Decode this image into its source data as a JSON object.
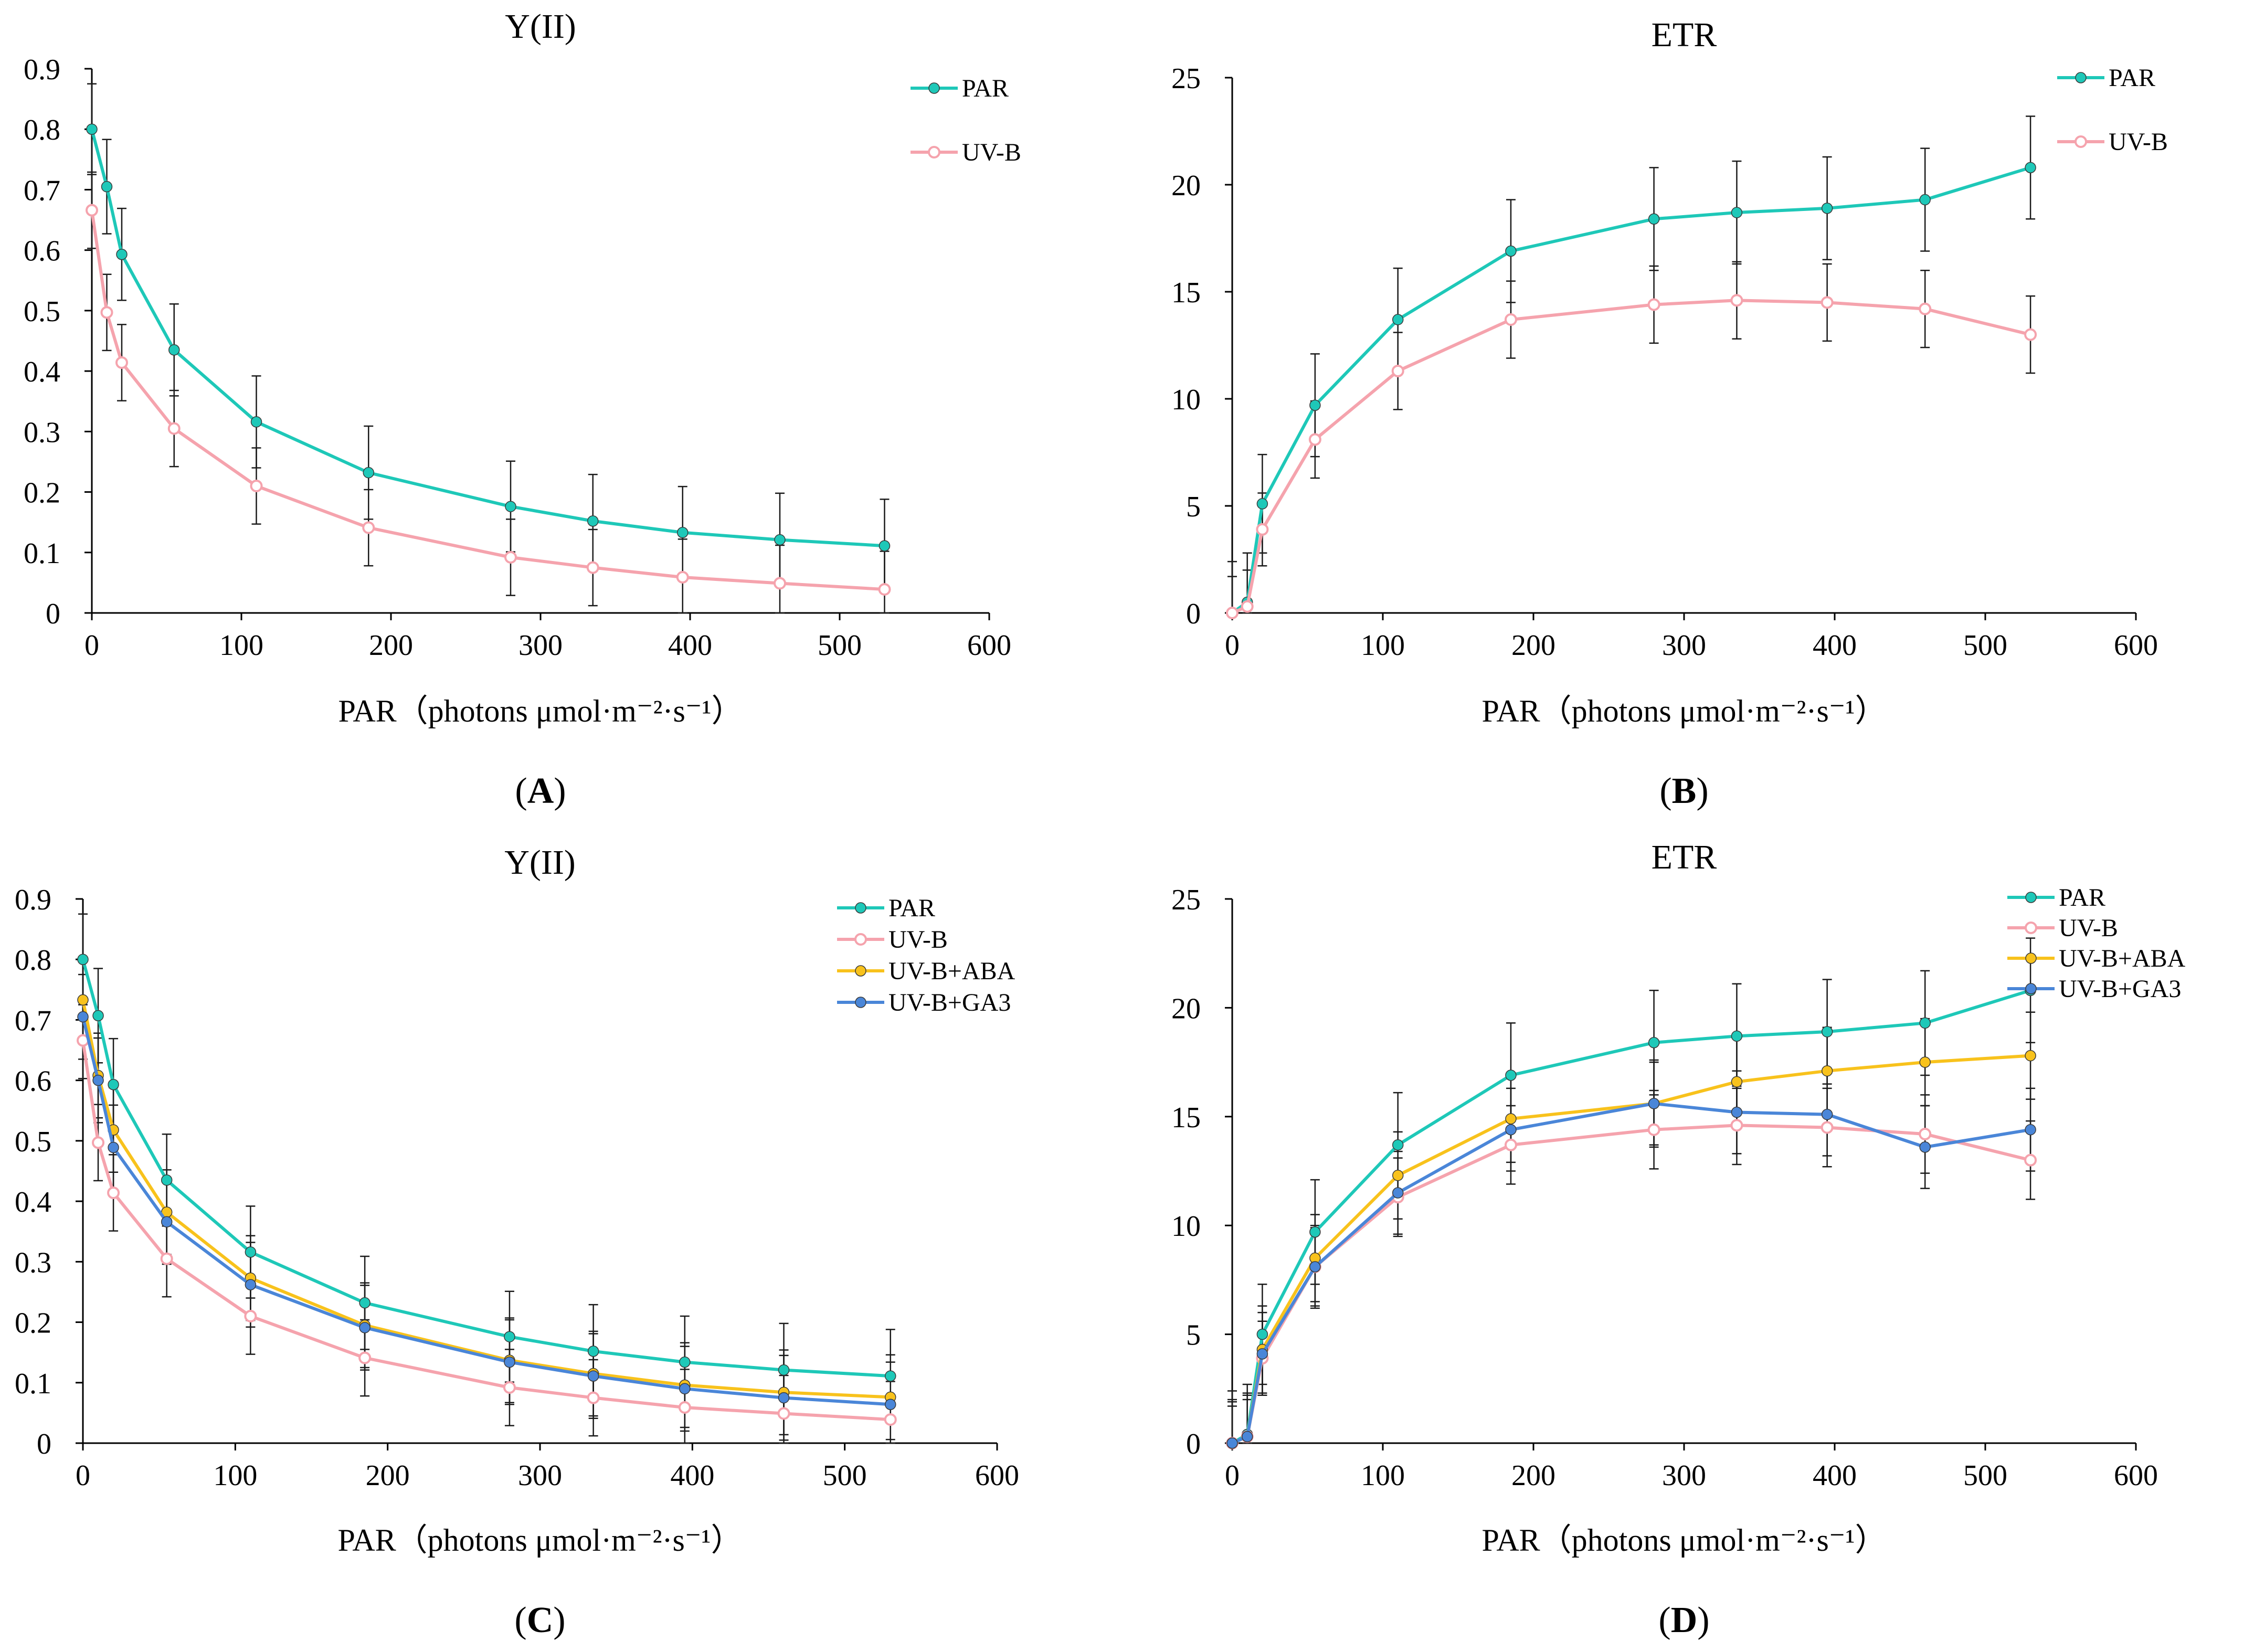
{
  "series_styles": {
    "PAR": {
      "color": "#1ec8b8"
    },
    "UV-B": {
      "color": "#f5a3ad"
    },
    "UV-B+ABA": {
      "color": "#f8c21c"
    },
    "UV-B+GA3": {
      "color": "#4a86d8"
    }
  },
  "chart_data": [
    {
      "type": "line",
      "id": "A",
      "panel_letter": "A",
      "title": "Y(II)",
      "xlabel": "PAR（photons μmol·m⁻²·s⁻¹）",
      "ylabel": "",
      "x": [
        0,
        10,
        20,
        55,
        110,
        185,
        280,
        335,
        395,
        460,
        530
      ],
      "xlim": [
        0,
        600
      ],
      "ylim": [
        0,
        0.9
      ],
      "xticks": [
        0,
        100,
        200,
        300,
        400,
        500,
        600
      ],
      "yticks": [
        0,
        0.1,
        0.2,
        0.3,
        0.4,
        0.5,
        0.6,
        0.7,
        0.8,
        0.9
      ],
      "ytick_labels": [
        "0",
        "0.1",
        "0.2",
        "0.3",
        "0.4",
        "0.5",
        "0.6",
        "0.7",
        "0.8",
        "0.9"
      ],
      "legend": [
        "PAR",
        "UV-B"
      ],
      "series": [
        {
          "name": "PAR",
          "values": [
            0.8,
            0.705,
            0.593,
            0.435,
            0.316,
            0.232,
            0.176,
            0.152,
            0.133,
            0.121,
            0.111
          ],
          "errors": [
            0.075,
            0.078,
            0.076,
            0.076,
            0.076,
            0.077,
            0.075,
            0.077,
            0.076,
            0.077,
            0.077
          ]
        },
        {
          "name": "UV-B",
          "values": [
            0.666,
            0.497,
            0.414,
            0.305,
            0.21,
            0.141,
            0.092,
            0.075,
            0.059,
            0.049,
            0.039
          ],
          "errors": [
            0.063,
            0.063,
            0.063,
            0.063,
            0.063,
            0.063,
            0.063,
            0.063,
            0.063,
            0.063,
            0.063
          ]
        }
      ]
    },
    {
      "type": "line",
      "id": "B",
      "panel_letter": "B",
      "title": "ETR",
      "xlabel": "PAR（photons μmol·m⁻²·s⁻¹）",
      "ylabel": "",
      "x": [
        0,
        10,
        20,
        55,
        110,
        185,
        280,
        335,
        395,
        460,
        530
      ],
      "xlim": [
        0,
        600
      ],
      "ylim": [
        0,
        25
      ],
      "xticks": [
        0,
        100,
        200,
        300,
        400,
        500,
        600
      ],
      "yticks": [
        0,
        5,
        10,
        15,
        20,
        25
      ],
      "ytick_labels": [
        "0",
        "5",
        "10",
        "15",
        "20",
        "25"
      ],
      "legend": [
        "PAR",
        "UV-B"
      ],
      "series": [
        {
          "name": "PAR",
          "values": [
            0,
            0.5,
            5.1,
            9.7,
            13.7,
            16.9,
            18.4,
            18.7,
            18.9,
            19.3,
            20.8
          ],
          "errors": [
            2.4,
            2.3,
            2.3,
            2.4,
            2.4,
            2.4,
            2.4,
            2.4,
            2.4,
            2.4,
            2.4
          ]
        },
        {
          "name": "UV-B",
          "values": [
            0,
            0.3,
            3.9,
            8.1,
            11.3,
            13.7,
            14.4,
            14.6,
            14.5,
            14.2,
            13.0
          ],
          "errors": [
            1.7,
            1.7,
            1.7,
            1.8,
            1.8,
            1.8,
            1.8,
            1.8,
            1.8,
            1.8,
            1.8
          ]
        }
      ]
    },
    {
      "type": "line",
      "id": "C",
      "panel_letter": "C",
      "title": "Y(II)",
      "xlabel": "PAR（photons μmol·m⁻²·s⁻¹）",
      "ylabel": "",
      "x": [
        0,
        10,
        20,
        55,
        110,
        185,
        280,
        335,
        395,
        460,
        530
      ],
      "xlim": [
        0,
        600
      ],
      "ylim": [
        0,
        0.9
      ],
      "xticks": [
        0,
        100,
        200,
        300,
        400,
        500,
        600
      ],
      "yticks": [
        0,
        0.1,
        0.2,
        0.3,
        0.4,
        0.5,
        0.6,
        0.7,
        0.8,
        0.9
      ],
      "ytick_labels": [
        "0",
        "0.1",
        "0.2",
        "0.3",
        "0.4",
        "0.5",
        "0.6",
        "0.7",
        "0.8",
        "0.9"
      ],
      "legend": [
        "PAR",
        "UV-B",
        "UV-B+ABA",
        "UV-B+GA3"
      ],
      "series": [
        {
          "name": "PAR",
          "values": [
            0.8,
            0.707,
            0.593,
            0.435,
            0.316,
            0.232,
            0.176,
            0.152,
            0.134,
            0.121,
            0.111
          ],
          "errors": [
            0.075,
            0.078,
            0.076,
            0.076,
            0.076,
            0.077,
            0.075,
            0.077,
            0.076,
            0.077,
            0.077
          ]
        },
        {
          "name": "UV-B",
          "values": [
            0.666,
            0.497,
            0.414,
            0.305,
            0.21,
            0.141,
            0.092,
            0.075,
            0.059,
            0.049,
            0.039
          ],
          "errors": [
            0.063,
            0.063,
            0.063,
            0.063,
            0.063,
            0.063,
            0.063,
            0.063,
            0.063,
            0.063,
            0.063
          ]
        },
        {
          "name": "UV-B+ABA",
          "values": [
            0.733,
            0.608,
            0.518,
            0.382,
            0.273,
            0.195,
            0.137,
            0.115,
            0.096,
            0.084,
            0.076
          ],
          "errors": [
            0.07,
            0.07,
            0.07,
            0.07,
            0.07,
            0.07,
            0.07,
            0.07,
            0.07,
            0.07,
            0.07
          ]
        },
        {
          "name": "UV-B+GA3",
          "values": [
            0.705,
            0.6,
            0.489,
            0.366,
            0.262,
            0.191,
            0.134,
            0.111,
            0.09,
            0.075,
            0.064
          ],
          "errors": [
            0.07,
            0.07,
            0.07,
            0.07,
            0.07,
            0.07,
            0.07,
            0.07,
            0.07,
            0.07,
            0.07
          ]
        }
      ]
    },
    {
      "type": "line",
      "id": "D",
      "panel_letter": "D",
      "title": "ETR",
      "xlabel": "PAR（photons μmol·m⁻²·s⁻¹）",
      "ylabel": "",
      "x": [
        0,
        10,
        20,
        55,
        110,
        185,
        280,
        335,
        395,
        460,
        530
      ],
      "xlim": [
        0,
        600
      ],
      "ylim": [
        0,
        25
      ],
      "xticks": [
        0,
        100,
        200,
        300,
        400,
        500,
        600
      ],
      "yticks": [
        0,
        5,
        10,
        15,
        20,
        25
      ],
      "ytick_labels": [
        "0",
        "5",
        "10",
        "15",
        "20",
        "25"
      ],
      "legend": [
        "PAR",
        "UV-B",
        "UV-B+ABA",
        "UV-B+GA3"
      ],
      "series": [
        {
          "name": "PAR",
          "values": [
            0,
            0.4,
            5.0,
            9.7,
            13.7,
            16.9,
            18.4,
            18.7,
            18.9,
            19.3,
            20.8
          ],
          "errors": [
            2.4,
            2.3,
            2.3,
            2.4,
            2.4,
            2.4,
            2.4,
            2.4,
            2.4,
            2.4,
            2.4
          ]
        },
        {
          "name": "UV-B",
          "values": [
            0,
            0.3,
            3.9,
            8.1,
            11.3,
            13.7,
            14.4,
            14.6,
            14.5,
            14.2,
            13.0
          ],
          "errors": [
            1.7,
            1.7,
            1.7,
            1.8,
            1.8,
            1.8,
            1.8,
            1.8,
            1.8,
            1.8,
            1.8
          ]
        },
        {
          "name": "UV-B+ABA",
          "values": [
            0,
            0.3,
            4.3,
            8.5,
            12.3,
            14.9,
            15.6,
            16.6,
            17.1,
            17.5,
            17.8
          ],
          "errors": [
            2.0,
            2.0,
            2.0,
            2.0,
            2.0,
            2.0,
            2.0,
            2.0,
            2.0,
            2.0,
            2.0
          ]
        },
        {
          "name": "UV-B+GA3",
          "values": [
            0,
            0.3,
            4.1,
            8.1,
            11.5,
            14.4,
            15.6,
            15.2,
            15.1,
            13.6,
            14.4
          ],
          "errors": [
            1.9,
            1.9,
            1.9,
            1.9,
            1.9,
            1.9,
            1.9,
            1.9,
            1.9,
            1.9,
            1.9
          ]
        }
      ]
    }
  ]
}
